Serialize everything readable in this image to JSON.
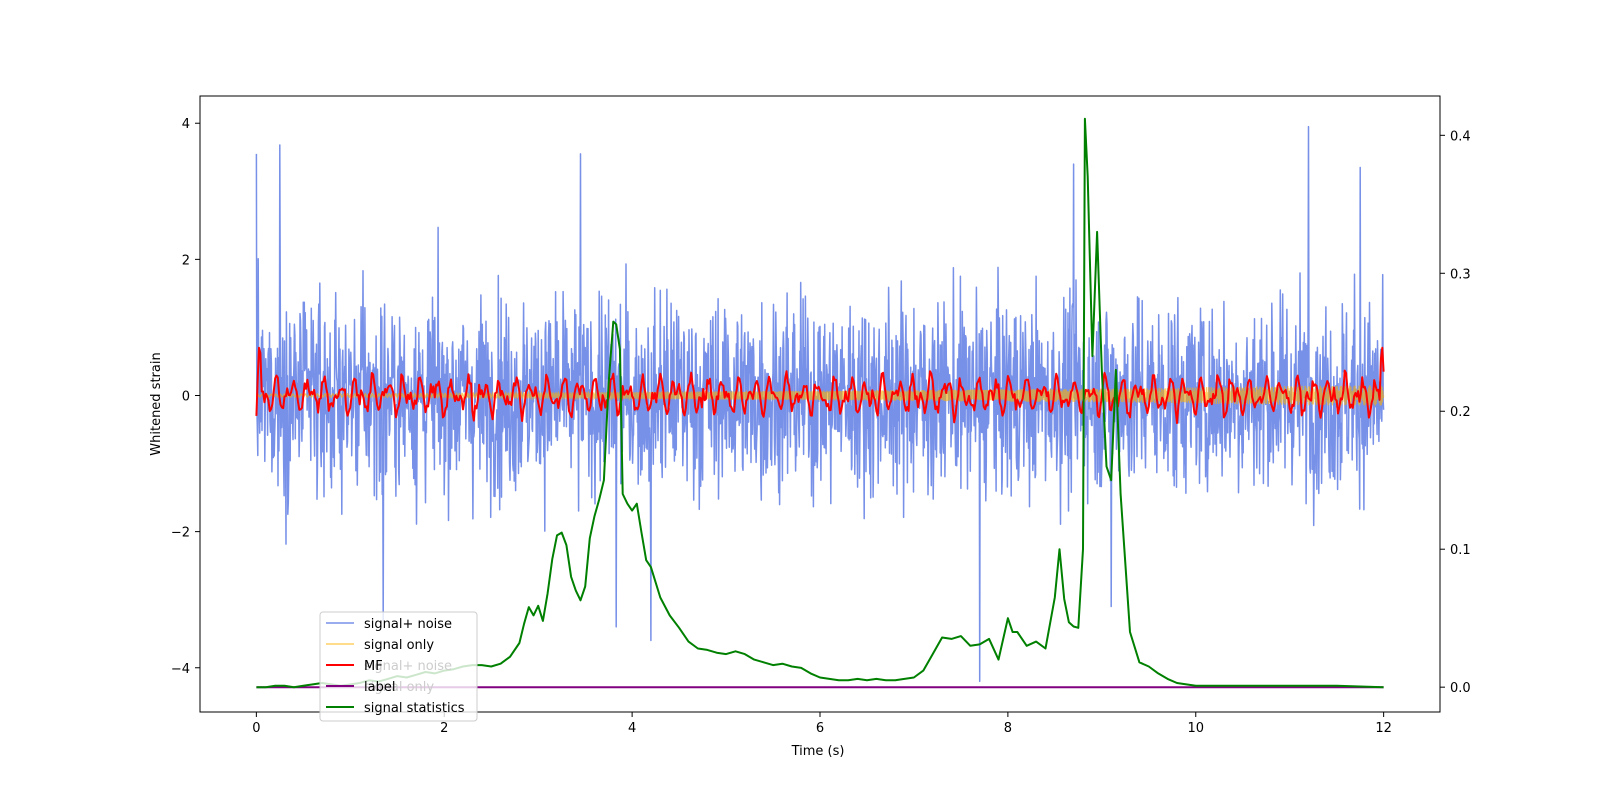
{
  "chart_data": {
    "type": "line",
    "xlabel": "Time (s)",
    "ylabel": "Whitened strain",
    "xlim": [
      -0.6,
      12.6
    ],
    "ylim": [
      -4.65,
      4.4
    ],
    "y2lim": [
      -0.018,
      0.4285
    ],
    "x_ticks": [
      0,
      2,
      4,
      6,
      8,
      10,
      12
    ],
    "x_tick_labels": [
      "0",
      "2",
      "4",
      "6",
      "8",
      "10",
      "12"
    ],
    "y_ticks": [
      4,
      2,
      0,
      -2,
      -4
    ],
    "y_tick_labels": [
      "4",
      "2",
      "0",
      "−2",
      "−4"
    ],
    "y2_ticks": [
      0.4,
      0.3,
      0.2,
      0.1,
      0.0
    ],
    "y2_tick_labels": [
      "0.4",
      "0.3",
      "0.2",
      "0.1",
      "0.0"
    ],
    "grid": false,
    "legend_position": "lower-left",
    "legend": [
      {
        "name": "signal+ noise",
        "color": "#4a6be0"
      },
      {
        "name": "signal only",
        "color": "#ffb000"
      },
      {
        "name": "MF",
        "color": "#ff0000"
      },
      {
        "name": "label",
        "color": "#800080"
      },
      {
        "name": "signal statistics",
        "color": "#008000"
      }
    ],
    "legend_overlap_text": {
      "signal_plus_noise": "signal+ noise",
      "signal_only": "signal only"
    },
    "series": [
      {
        "name": "signal+ noise",
        "color": "#4a6be0",
        "axis": "left",
        "style": "dense noisy oscillation, amplitude about ±1.6 with excursions to about ±3.7 and a dip near -4.2 at t≈7.7",
        "samples_per_second": 200,
        "typical_amplitude": 1.6,
        "spikes": [
          [
            0.0,
            3.55
          ],
          [
            0.25,
            3.68
          ],
          [
            1.35,
            -3.3
          ],
          [
            3.45,
            3.55
          ],
          [
            3.83,
            -3.4
          ],
          [
            4.2,
            -3.6
          ],
          [
            7.7,
            -4.2
          ],
          [
            8.7,
            3.4
          ],
          [
            9.1,
            -3.1
          ],
          [
            11.2,
            3.95
          ],
          [
            11.75,
            3.35
          ]
        ]
      },
      {
        "name": "signal only",
        "color": "#ffb000",
        "axis": "left",
        "style": "small-amplitude chirp band around 0",
        "envelope_x": [
          0,
          2,
          4,
          6,
          8,
          9,
          10,
          11,
          12
        ],
        "envelope_amplitude": [
          0.02,
          0.03,
          0.05,
          0.07,
          0.09,
          0.1,
          0.12,
          0.14,
          0.15
        ]
      },
      {
        "name": "MF",
        "color": "#ff0000",
        "axis": "left",
        "style": "oscillation around 0 with amplitude about ±0.3, peaks near 0.7 at t≈0.05 and t≈11.98",
        "points_per_second": 70,
        "typical_amplitude": 0.3
      },
      {
        "name": "label",
        "color": "#800080",
        "axis": "right",
        "x": [
          0,
          12
        ],
        "y": [
          0.0,
          0.0
        ]
      },
      {
        "name": "signal statistics",
        "color": "#008000",
        "axis": "right",
        "x": [
          0,
          0.1,
          0.2,
          0.3,
          0.4,
          0.5,
          0.6,
          0.7,
          0.8,
          0.9,
          1.0,
          1.1,
          1.2,
          1.3,
          1.4,
          1.5,
          1.6,
          1.7,
          1.8,
          1.9,
          2.0,
          2.1,
          2.2,
          2.3,
          2.4,
          2.5,
          2.6,
          2.7,
          2.8,
          2.85,
          2.9,
          2.95,
          3.0,
          3.05,
          3.1,
          3.15,
          3.2,
          3.25,
          3.3,
          3.35,
          3.4,
          3.45,
          3.5,
          3.55,
          3.6,
          3.65,
          3.7,
          3.75,
          3.8,
          3.83,
          3.87,
          3.9,
          3.95,
          4.0,
          4.05,
          4.1,
          4.15,
          4.2,
          4.3,
          4.4,
          4.5,
          4.6,
          4.7,
          4.8,
          4.9,
          5.0,
          5.1,
          5.2,
          5.3,
          5.4,
          5.5,
          5.6,
          5.7,
          5.8,
          5.9,
          6.0,
          6.1,
          6.2,
          6.3,
          6.4,
          6.5,
          6.6,
          6.7,
          6.8,
          6.9,
          7.0,
          7.1,
          7.2,
          7.3,
          7.4,
          7.5,
          7.6,
          7.7,
          7.8,
          7.9,
          8.0,
          8.05,
          8.1,
          8.2,
          8.3,
          8.4,
          8.5,
          8.55,
          8.6,
          8.65,
          8.7,
          8.75,
          8.8,
          8.82,
          8.85,
          8.9,
          8.95,
          9.0,
          9.05,
          9.1,
          9.15,
          9.2,
          9.25,
          9.3,
          9.4,
          9.5,
          9.6,
          9.7,
          9.8,
          9.9,
          10.0,
          10.5,
          11.0,
          11.5,
          12.0
        ],
        "y": [
          0.0,
          0.0,
          0.001,
          0.001,
          0.0,
          0.001,
          0.002,
          0.003,
          0.002,
          0.001,
          0.002,
          0.003,
          0.005,
          0.004,
          0.006,
          0.008,
          0.007,
          0.009,
          0.011,
          0.01,
          0.012,
          0.013,
          0.015,
          0.016,
          0.016,
          0.015,
          0.017,
          0.022,
          0.032,
          0.046,
          0.058,
          0.052,
          0.059,
          0.048,
          0.068,
          0.093,
          0.11,
          0.112,
          0.103,
          0.08,
          0.07,
          0.063,
          0.073,
          0.108,
          0.124,
          0.136,
          0.15,
          0.22,
          0.265,
          0.263,
          0.245,
          0.14,
          0.133,
          0.128,
          0.133,
          0.112,
          0.092,
          0.087,
          0.065,
          0.052,
          0.043,
          0.033,
          0.028,
          0.027,
          0.025,
          0.024,
          0.026,
          0.024,
          0.02,
          0.018,
          0.016,
          0.017,
          0.015,
          0.014,
          0.01,
          0.007,
          0.006,
          0.005,
          0.005,
          0.006,
          0.005,
          0.006,
          0.005,
          0.005,
          0.006,
          0.007,
          0.012,
          0.024,
          0.036,
          0.035,
          0.037,
          0.03,
          0.031,
          0.035,
          0.02,
          0.05,
          0.04,
          0.04,
          0.03,
          0.033,
          0.028,
          0.065,
          0.1,
          0.064,
          0.047,
          0.044,
          0.043,
          0.1,
          0.412,
          0.37,
          0.24,
          0.33,
          0.23,
          0.16,
          0.15,
          0.23,
          0.14,
          0.09,
          0.04,
          0.018,
          0.015,
          0.01,
          0.006,
          0.003,
          0.002,
          0.001,
          0.001,
          0.001,
          0.001,
          0.0
        ]
      }
    ]
  }
}
